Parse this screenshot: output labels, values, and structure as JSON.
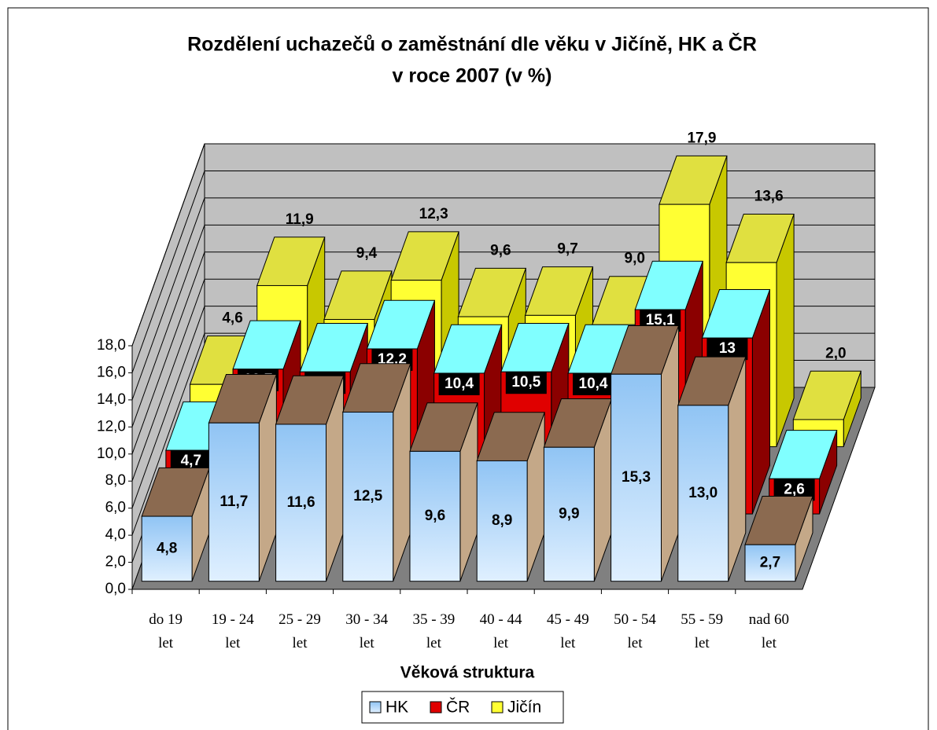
{
  "chart_data": {
    "type": "bar3d",
    "title": [
      "Rozdělení uchazečů o zaměstnání dle věku v Jičíně, HK a ČR",
      "v roce 2007 (v %)"
    ],
    "x_label": "Věková struktura",
    "categories": [
      "do 19 let",
      "19 - 24 let",
      "25 - 29 let",
      "30 - 34 let",
      "35 - 39 let",
      "40 - 44 let",
      "45 - 49 let",
      "50 - 54 let",
      "55 - 59 let",
      "nad 60 let"
    ],
    "series": [
      {
        "name": "HK",
        "color": "#a8d0f8",
        "values": [
          4.8,
          11.7,
          11.6,
          12.5,
          9.6,
          8.9,
          9.9,
          15.3,
          13.0,
          2.7
        ],
        "value_labels": [
          "4,8",
          "11,7",
          "11,6",
          "12,5",
          "9,6",
          "8,9",
          "9,9",
          "15,3",
          "13,0",
          "2,7"
        ]
      },
      {
        "name": "ČR",
        "color": "#e00000",
        "values": [
          4.7,
          10.7,
          10.5,
          12.2,
          10.4,
          10.5,
          10.4,
          15.1,
          13,
          2.6
        ],
        "value_labels": [
          "4,7",
          "10,7",
          "10,5",
          "12,2",
          "10,4",
          "10,5",
          "10,4",
          "15,1",
          "13",
          "2,6"
        ]
      },
      {
        "name": "Jičín",
        "color": "#ffff33",
        "values": [
          4.6,
          11.9,
          9.4,
          12.3,
          9.6,
          9.7,
          9.0,
          17.9,
          13.6,
          2.0
        ],
        "value_labels": [
          "4,6",
          "11,9",
          "9,4",
          "12,3",
          "9,6",
          "9,7",
          "9,0",
          "17,9",
          "13,6",
          "2,0"
        ]
      }
    ],
    "ylim": [
      0,
      18
    ],
    "yticks": [
      {
        "value": 0,
        "label": "0,0"
      },
      {
        "value": 2,
        "label": "2,0"
      },
      {
        "value": 4,
        "label": "4,0"
      },
      {
        "value": 6,
        "label": "6,0"
      },
      {
        "value": 8,
        "label": "8,0"
      },
      {
        "value": 10,
        "label": "10,0"
      },
      {
        "value": 12,
        "label": "12,0"
      },
      {
        "value": 14,
        "label": "14,0"
      },
      {
        "value": 16,
        "label": "16,0"
      },
      {
        "value": 18,
        "label": "18,0"
      }
    ],
    "grid": true
  }
}
